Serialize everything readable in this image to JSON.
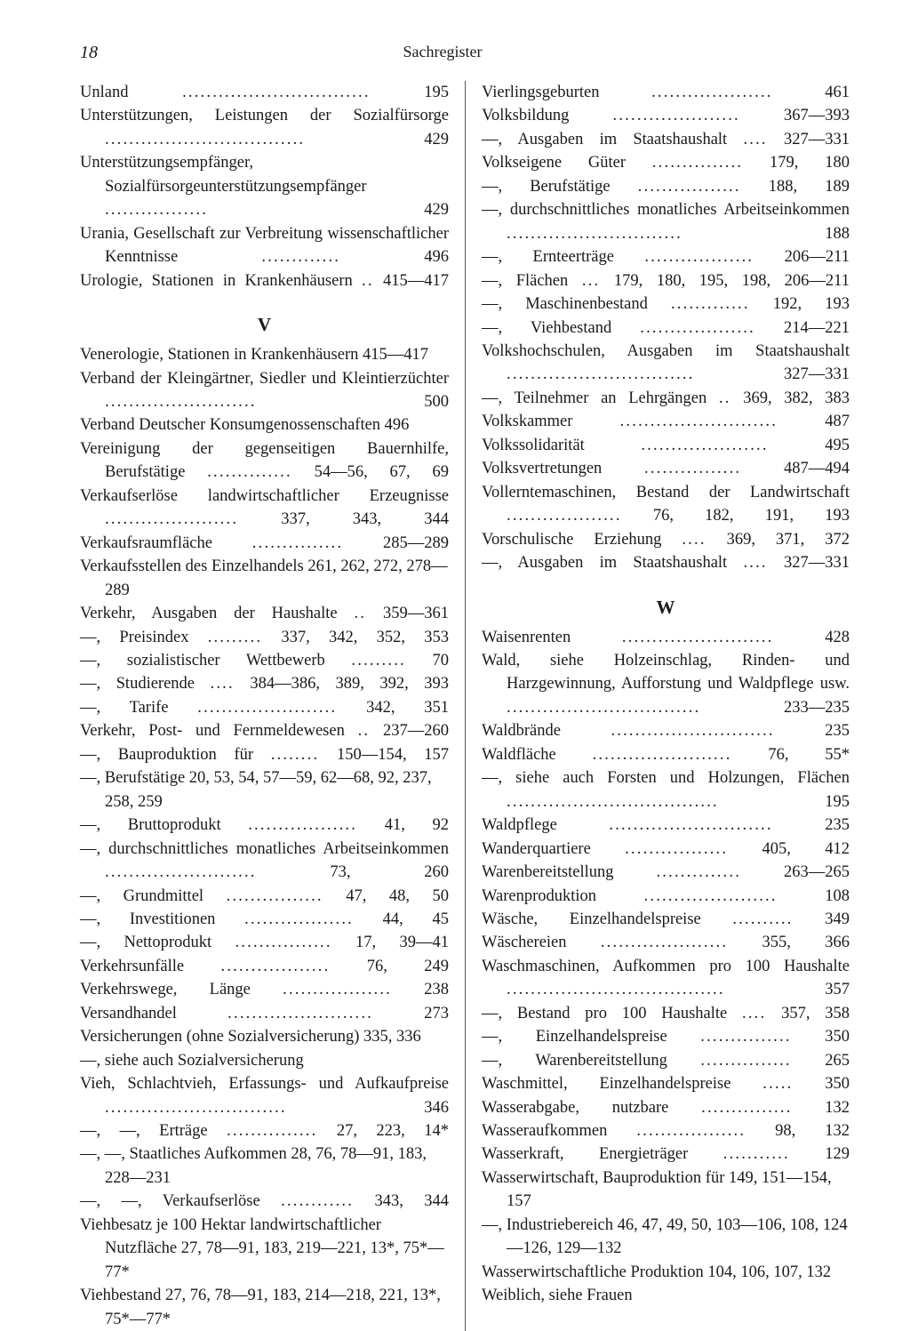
{
  "page_number": "18",
  "running_title": "Sachregister",
  "font": {
    "family": "Century Schoolbook / serif",
    "size_body_pt": 11,
    "size_header_pt": 12
  },
  "colors": {
    "text": "#1a1a1a",
    "background": "#ffffff",
    "rule": "#555555"
  },
  "left": [
    {
      "t": "Unland",
      "p": "195"
    },
    {
      "t": "Unterstützungen, Leistungen der Sozialfürsorge",
      "p": "429"
    },
    {
      "t": "Unterstützungsempfänger, Sozialfürsorgeunterstützungsempfänger",
      "p": "429"
    },
    {
      "t": "Urania, Gesellschaft zur Verbreitung wissenschaftlicher Kenntnisse",
      "p": "496"
    },
    {
      "t": "Urologie, Stationen in Krankenhäusern",
      "p": "415—417",
      "tight": true
    },
    {
      "section": "V"
    },
    {
      "t": "Venerologie, Stationen in Krankenhäusern 415—417",
      "nojust": true
    },
    {
      "t": "Verband der Kleingärtner, Siedler und Kleintierzüchter",
      "p": "500"
    },
    {
      "t": "Verband Deutscher Konsumgenossenschaften 496",
      "nojust": true
    },
    {
      "t": "Vereinigung der gegenseitigen Bauernhilfe, Berufstätige",
      "p": "54—56, 67, 69"
    },
    {
      "t": "Verkaufserlöse landwirtschaftlicher Erzeugnisse",
      "p": "337, 343, 344"
    },
    {
      "t": "Verkaufsraumfläche",
      "p": "285—289"
    },
    {
      "t": "Verkaufsstellen des Einzelhandels 261, 262, 272, 278—289",
      "nojust": true
    },
    {
      "t": "Verkehr, Ausgaben der Haushalte",
      "p": "359—361"
    },
    {
      "t": "—, Preisindex",
      "p": "337, 342, 352, 353"
    },
    {
      "t": "—, sozialistischer Wettbewerb",
      "p": "70"
    },
    {
      "t": "—, Studierende",
      "p": "384—386, 389, 392, 393"
    },
    {
      "t": "—, Tarife",
      "p": "342, 351"
    },
    {
      "t": "Verkehr, Post- und Fernmeldewesen",
      "p": "237—260"
    },
    {
      "t": "—, Bauproduktion für",
      "p": "150—154, 157"
    },
    {
      "t": "—, Berufstätige 20, 53, 54, 57—59, 62—68, 92, 237, 258, 259",
      "nojust": true
    },
    {
      "t": "—, Bruttoprodukt",
      "p": "41, 92"
    },
    {
      "t": "—, durchschnittliches monatliches Arbeitseinkommen",
      "p": "73, 260"
    },
    {
      "t": "—, Grundmittel",
      "p": "47, 48, 50"
    },
    {
      "t": "—, Investitionen",
      "p": "44, 45"
    },
    {
      "t": "—, Nettoprodukt",
      "p": "17, 39—41"
    },
    {
      "t": "Verkehrsunfälle",
      "p": "76, 249"
    },
    {
      "t": "Verkehrswege, Länge",
      "p": "238"
    },
    {
      "t": "Versandhandel",
      "p": "273"
    },
    {
      "t": "Versicherungen (ohne Sozialversicherung) 335, 336",
      "nojust": true
    },
    {
      "t": "—, siehe auch Sozialversicherung",
      "nojust": true
    },
    {
      "t": "Vieh, Schlachtvieh, Erfassungs- und Aufkaufpreise",
      "p": "346"
    },
    {
      "t": "—, —, Erträge",
      "p": "27, 223, 14*"
    },
    {
      "t": "—, —, Staatliches Aufkommen 28, 76, 78—91, 183, 228—231",
      "nojust": true
    },
    {
      "t": "—, —, Verkaufserlöse",
      "p": "343, 344"
    },
    {
      "t": "Viehbesatz je 100 Hektar landwirtschaftlicher Nutzfläche 27, 78—91, 183, 219—221, 13*, 75*—77*",
      "nojust": true
    },
    {
      "t": "Viehbestand 27, 76, 78—91, 183, 214—218, 221, 13*, 75*—77*",
      "nojust": true
    }
  ],
  "right": [
    {
      "t": "Vierlingsgeburten",
      "p": "461"
    },
    {
      "t": "Volksbildung",
      "p": "367—393"
    },
    {
      "t": "—, Ausgaben im Staatshaushalt",
      "p": "327—331"
    },
    {
      "t": "Volkseigene Güter",
      "p": "179, 180"
    },
    {
      "t": "—, Berufstätige",
      "p": "188, 189"
    },
    {
      "t": "—, durchschnittliches monatliches Arbeitseinkommen",
      "p": "188"
    },
    {
      "t": "—, Ernteerträge",
      "p": "206—211"
    },
    {
      "t": "—, Flächen",
      "p": "179, 180, 195, 198, 206—211"
    },
    {
      "t": "—, Maschinenbestand",
      "p": "192, 193"
    },
    {
      "t": "—, Viehbestand",
      "p": "214—221"
    },
    {
      "t": "Volkshochschulen, Ausgaben im Staatshaushalt",
      "p": "327—331"
    },
    {
      "t": "—, Teilnehmer an Lehrgängen",
      "p": "369, 382, 383"
    },
    {
      "t": "Volkskammer",
      "p": "487"
    },
    {
      "t": "Volkssolidarität",
      "p": "495"
    },
    {
      "t": "Volksvertretungen",
      "p": "487—494"
    },
    {
      "t": "Vollerntemaschinen, Bestand der Landwirtschaft",
      "p": "76, 182, 191, 193"
    },
    {
      "t": "Vorschulische Erziehung",
      "p": "369, 371, 372"
    },
    {
      "t": "—, Ausgaben im Staatshaushalt",
      "p": "327—331"
    },
    {
      "section": "W"
    },
    {
      "t": "Waisenrenten",
      "p": "428"
    },
    {
      "t": "Wald, siehe Holzeinschlag, Rinden- und Harzgewinnung, Aufforstung und Waldpflege usw.",
      "p": "233—235"
    },
    {
      "t": "Waldbrände",
      "p": "235"
    },
    {
      "t": "Waldfläche",
      "p": "76, 55*"
    },
    {
      "t": "—, siehe auch Forsten und Holzungen, Flächen",
      "p": "195"
    },
    {
      "t": "Waldpflege",
      "p": "235"
    },
    {
      "t": "Wanderquartiere",
      "p": "405, 412"
    },
    {
      "t": "Warenbereitstellung",
      "p": "263—265"
    },
    {
      "t": "Warenproduktion",
      "p": "108"
    },
    {
      "t": "Wäsche, Einzelhandelspreise",
      "p": "349"
    },
    {
      "t": "Wäschereien",
      "p": "355, 366"
    },
    {
      "t": "Waschmaschinen, Aufkommen pro 100 Haushalte",
      "p": "357"
    },
    {
      "t": "—, Bestand pro 100 Haushalte",
      "p": "357, 358"
    },
    {
      "t": "—, Einzelhandelspreise",
      "p": "350"
    },
    {
      "t": "—, Warenbereitstellung",
      "p": "265"
    },
    {
      "t": "Waschmittel, Einzelhandelspreise",
      "p": "350"
    },
    {
      "t": "Wasserabgabe, nutzbare",
      "p": "132"
    },
    {
      "t": "Wasseraufkommen",
      "p": "98, 132"
    },
    {
      "t": "Wasserkraft, Energieträger",
      "p": "129"
    },
    {
      "t": "Wasserwirtschaft, Bauproduktion für 149, 151—154, 157",
      "nojust": true
    },
    {
      "t": "—, Industriebereich 46, 47, 49, 50, 103—106, 108, 124—126, 129—132",
      "nojust": true
    },
    {
      "t": "Wasserwirtschaftliche Produktion 104, 106, 107, 132",
      "nojust": true
    },
    {
      "t": "Weiblich, siehe Frauen",
      "nojust": true
    }
  ]
}
